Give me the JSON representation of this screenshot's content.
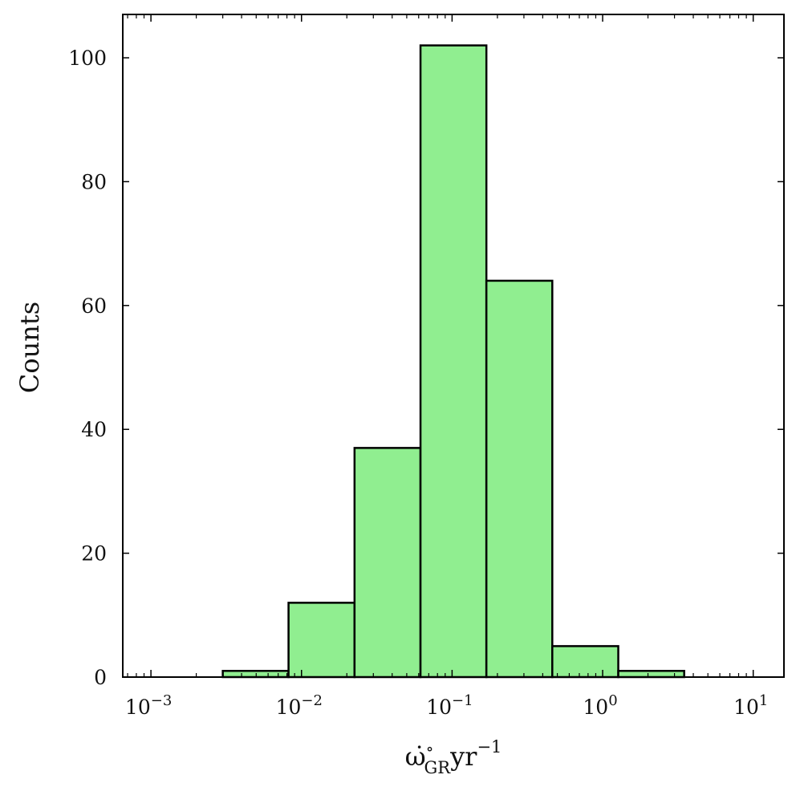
{
  "chart_data": {
    "type": "bar",
    "title": "",
    "xlabel": "ω̇°GR yr⁻¹",
    "xlabel_parts": {
      "symbol": "ω̇",
      "superscript": "∘",
      "subscript": "GR",
      "unit": "yr",
      "unit_exponent": "−1"
    },
    "ylabel": "Counts",
    "x_scale": "log",
    "xlim": [
      0.00065,
      16
    ],
    "ylim": [
      0,
      107
    ],
    "grid": false,
    "fill_color": "#90ee90",
    "edge_color": "#000000",
    "bins": [
      {
        "x_start": 0.003,
        "x_end": 0.0082,
        "count": 1
      },
      {
        "x_start": 0.0082,
        "x_end": 0.0225,
        "count": 12
      },
      {
        "x_start": 0.0225,
        "x_end": 0.0617,
        "count": 37
      },
      {
        "x_start": 0.0617,
        "x_end": 0.169,
        "count": 102
      },
      {
        "x_start": 0.169,
        "x_end": 0.463,
        "count": 64
      },
      {
        "x_start": 0.463,
        "x_end": 1.27,
        "count": 5
      },
      {
        "x_start": 1.27,
        "x_end": 3.48,
        "count": 1
      }
    ],
    "y_ticks": [
      0,
      20,
      40,
      60,
      80,
      100
    ],
    "y_tick_labels": [
      "0",
      "20",
      "40",
      "60",
      "80",
      "100"
    ],
    "x_ticks": [
      0.001,
      0.01,
      0.1,
      1,
      10
    ],
    "x_tick_bases": [
      "10",
      "10",
      "10",
      "10",
      "10"
    ],
    "x_tick_exponents": [
      "−3",
      "−2",
      "−1",
      "0",
      "1"
    ]
  }
}
